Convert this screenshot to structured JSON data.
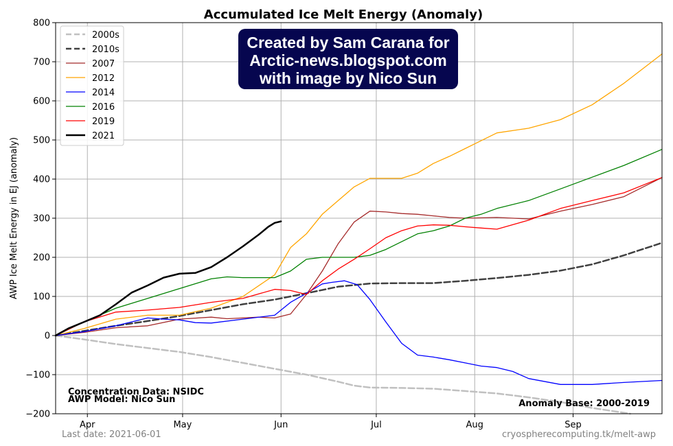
{
  "chart_data": {
    "type": "line",
    "title": "Accumulated Ice Melt Energy (Anomaly)",
    "xlabel": "",
    "ylabel": "AWP Ice Melt Energy in EJ (anomaly)",
    "x_unit": "day of year",
    "xlim": [
      81,
      272
    ],
    "ylim": [
      -200,
      800
    ],
    "yticks": [
      -200,
      -100,
      0,
      100,
      200,
      300,
      400,
      500,
      600,
      700,
      800
    ],
    "ytick_labels": [
      "−200",
      "−100",
      "0",
      "100",
      "200",
      "300",
      "400",
      "500",
      "600",
      "700",
      "800"
    ],
    "xticks": [
      91,
      121,
      152,
      182,
      213,
      244
    ],
    "xtick_labels": [
      "Apr",
      "May",
      "Jun",
      "Jul",
      "Aug",
      "Sep"
    ],
    "grid": true,
    "legend_position": "top-left",
    "series": [
      {
        "name": "2000s",
        "color": "#c0c0c0",
        "style": "dashed",
        "width": 2.5,
        "x": [
          81,
          90,
          100,
          110,
          120,
          130,
          140,
          150,
          160,
          170,
          175,
          180,
          190,
          200,
          210,
          220,
          230,
          240,
          250,
          262
        ],
        "y": [
          0,
          -10,
          -22,
          -32,
          -42,
          -55,
          -70,
          -85,
          -100,
          -118,
          -128,
          -133,
          -134,
          -136,
          -142,
          -148,
          -158,
          -170,
          -185,
          -200
        ]
      },
      {
        "name": "2010s",
        "color": "#404040",
        "style": "dashed",
        "width": 2.5,
        "x": [
          81,
          90,
          100,
          110,
          120,
          130,
          140,
          150,
          160,
          170,
          180,
          190,
          200,
          210,
          220,
          230,
          240,
          250,
          260,
          272
        ],
        "y": [
          0,
          12,
          25,
          37,
          50,
          65,
          80,
          92,
          108,
          125,
          133,
          134,
          134,
          140,
          147,
          155,
          166,
          182,
          205,
          237
        ]
      },
      {
        "name": "2007",
        "color": "#a52a2a",
        "style": "solid",
        "width": 1.3,
        "x": [
          81,
          90,
          100,
          110,
          120,
          130,
          135,
          145,
          150,
          155,
          160,
          165,
          170,
          175,
          180,
          185,
          190,
          195,
          200,
          205,
          210,
          220,
          230,
          240,
          250,
          260,
          272
        ],
        "y": [
          0,
          8,
          20,
          25,
          42,
          47,
          43,
          47,
          45,
          55,
          105,
          165,
          235,
          290,
          318,
          316,
          312,
          310,
          306,
          302,
          300,
          302,
          298,
          318,
          335,
          355,
          404
        ]
      },
      {
        "name": "2012",
        "color": "#ffa500",
        "style": "solid",
        "width": 1.3,
        "x": [
          81,
          90,
          100,
          110,
          120,
          130,
          140,
          150,
          155,
          160,
          165,
          170,
          175,
          180,
          185,
          190,
          195,
          200,
          205,
          210,
          215,
          220,
          230,
          240,
          250,
          260,
          272
        ],
        "y": [
          0,
          18,
          42,
          52,
          52,
          70,
          100,
          155,
          225,
          260,
          310,
          345,
          380,
          402,
          402,
          402,
          415,
          440,
          458,
          478,
          498,
          518,
          530,
          552,
          590,
          645,
          720
        ]
      },
      {
        "name": "2014",
        "color": "#0000ff",
        "style": "solid",
        "width": 1.3,
        "x": [
          81,
          90,
          100,
          110,
          115,
          120,
          125,
          130,
          140,
          150,
          155,
          160,
          165,
          168,
          172,
          176,
          180,
          185,
          190,
          195,
          200,
          205,
          210,
          215,
          220,
          225,
          230,
          240,
          250,
          260,
          272
        ],
        "y": [
          0,
          10,
          25,
          45,
          42,
          40,
          33,
          32,
          42,
          52,
          85,
          108,
          132,
          136,
          140,
          130,
          92,
          35,
          -20,
          -50,
          -55,
          -62,
          -70,
          -78,
          -82,
          -92,
          -110,
          -125,
          -125,
          -120,
          -115
        ]
      },
      {
        "name": "2016",
        "color": "#008000",
        "style": "solid",
        "width": 1.3,
        "x": [
          81,
          90,
          100,
          110,
          120,
          130,
          135,
          140,
          145,
          150,
          155,
          160,
          165,
          170,
          175,
          180,
          185,
          190,
          195,
          200,
          205,
          210,
          215,
          220,
          230,
          240,
          250,
          260,
          272
        ],
        "y": [
          0,
          35,
          70,
          95,
          120,
          145,
          150,
          148,
          148,
          148,
          165,
          195,
          200,
          200,
          200,
          205,
          220,
          240,
          260,
          268,
          280,
          300,
          310,
          325,
          345,
          375,
          405,
          435,
          476
        ]
      },
      {
        "name": "2019",
        "color": "#ff0000",
        "style": "solid",
        "width": 1.3,
        "x": [
          81,
          90,
          100,
          110,
          120,
          130,
          140,
          150,
          155,
          160,
          165,
          170,
          175,
          180,
          185,
          190,
          195,
          200,
          205,
          210,
          215,
          220,
          230,
          240,
          250,
          260,
          272
        ],
        "y": [
          0,
          35,
          60,
          65,
          72,
          85,
          95,
          118,
          115,
          105,
          140,
          170,
          195,
          222,
          250,
          268,
          280,
          283,
          282,
          278,
          275,
          272,
          295,
          325,
          345,
          365,
          404
        ]
      },
      {
        "name": "2021",
        "color": "#000000",
        "style": "solid",
        "width": 2.5,
        "x": [
          81,
          85,
          90,
          95,
          100,
          105,
          110,
          115,
          120,
          125,
          130,
          135,
          140,
          145,
          148,
          150,
          152
        ],
        "y": [
          0,
          18,
          35,
          52,
          80,
          110,
          128,
          148,
          158,
          160,
          175,
          200,
          228,
          258,
          278,
          288,
          292
        ]
      }
    ],
    "annotations": {
      "data_source_1": "Concentration Data: NSIDC",
      "data_source_2": "AWP Model: Nico Sun",
      "anomaly_base": "Anomaly Base: 2000-2019",
      "last_date": "Last date: 2021-06-01",
      "website": "cryospherecomputing.tk/melt-awp"
    },
    "credit_box": {
      "lines": [
        "Created by Sam Carana for",
        "Arctic-news.blogspot.com",
        "with image by Nico Sun"
      ]
    }
  }
}
